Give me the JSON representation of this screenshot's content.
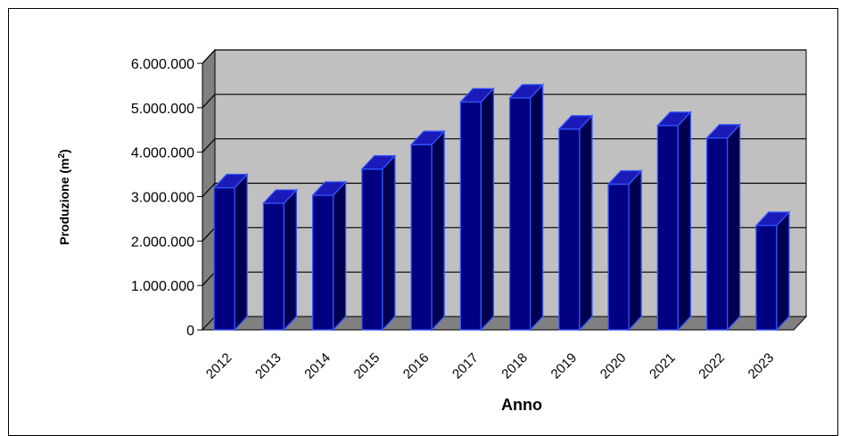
{
  "chart_data": {
    "type": "bar",
    "style": "3d-column",
    "categories": [
      "2012",
      "2013",
      "2014",
      "2015",
      "2016",
      "2017",
      "2018",
      "2019",
      "2020",
      "2021",
      "2022",
      "2023"
    ],
    "values": [
      3200000,
      2850000,
      3030000,
      3620000,
      4170000,
      5130000,
      5220000,
      4520000,
      3280000,
      4600000,
      4320000,
      2350000
    ],
    "xlabel": "Anno",
    "ylabel_main": "Produzione (m",
    "ylabel_sup": "2",
    "ylabel_tail": ")",
    "ylim": [
      0,
      6000000
    ],
    "yticks": [
      0,
      1000000,
      2000000,
      3000000,
      4000000,
      5000000,
      6000000
    ],
    "ytick_labels": [
      "0",
      "1.000.000",
      "2.000.000",
      "3.000.000",
      "4.000.000",
      "5.000.000",
      "6.000.000"
    ],
    "grid": true,
    "legend": "none",
    "colors": {
      "bar_front": "#000080",
      "bar_side": "#000050",
      "bar_top": "#1a1ab8",
      "bar_edge": "#3355ff",
      "wall": "#c0c0c0",
      "wall_side": "#808080",
      "floor": "#808080"
    }
  }
}
